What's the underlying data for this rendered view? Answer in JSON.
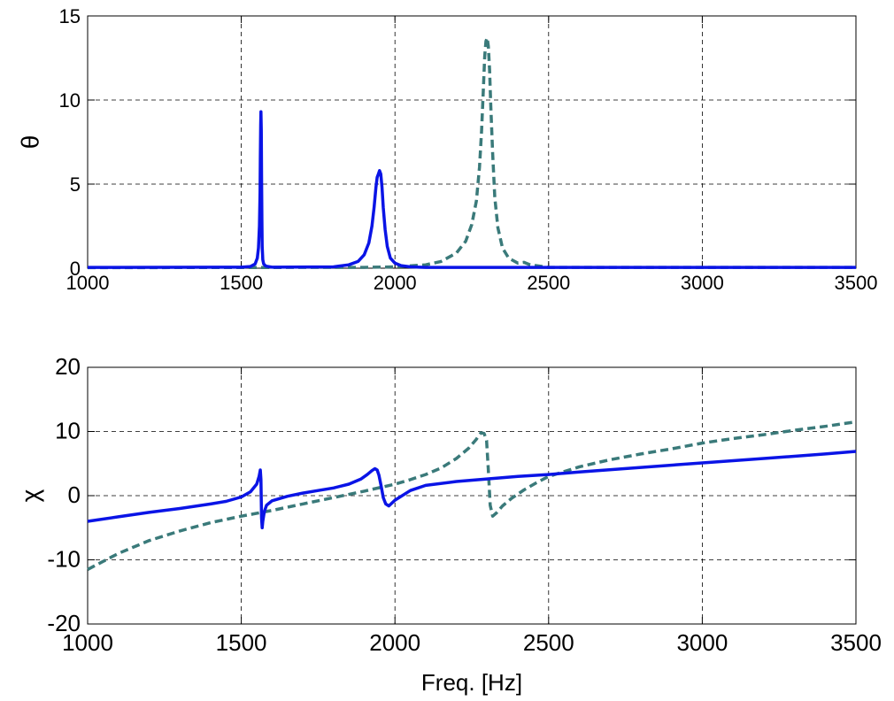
{
  "chart_data": [
    {
      "type": "line",
      "title": "",
      "xlabel": "",
      "ylabel": "θ",
      "xlim": [
        1000,
        3500
      ],
      "ylim": [
        0,
        15
      ],
      "xticks": [
        1000,
        1500,
        2000,
        2500,
        3000,
        3500
      ],
      "yticks": [
        0,
        5,
        10,
        15
      ],
      "grid": true,
      "series": [
        {
          "style": "solid",
          "color": "#0a14e6",
          "x": [
            1000,
            1500,
            1530,
            1545,
            1552,
            1556,
            1559,
            1561,
            1562,
            1563,
            1564,
            1565,
            1566,
            1567,
            1568,
            1570,
            1573,
            1580,
            1600,
            1800,
            1850,
            1880,
            1900,
            1915,
            1925,
            1932,
            1938,
            1942,
            1946,
            1950,
            1954,
            1958,
            1962,
            1968,
            1975,
            1985,
            2000,
            2020,
            2050,
            2100,
            3500
          ],
          "y": [
            0.05,
            0.06,
            0.1,
            0.25,
            0.6,
            1.2,
            2.5,
            4.5,
            6.5,
            8.5,
            9.3,
            8.2,
            5.5,
            2.8,
            1.3,
            0.5,
            0.25,
            0.12,
            0.06,
            0.08,
            0.2,
            0.4,
            0.8,
            1.5,
            2.5,
            3.6,
            4.8,
            5.4,
            5.6,
            5.8,
            5.6,
            4.8,
            3.6,
            2.3,
            1.3,
            0.6,
            0.3,
            0.15,
            0.08,
            0.05,
            0.05
          ]
        },
        {
          "style": "dashed",
          "color": "#3a7a7a",
          "x": [
            1000,
            1900,
            2000,
            2100,
            2150,
            2200,
            2230,
            2250,
            2265,
            2275,
            2282,
            2288,
            2292,
            2296,
            2300,
            2304,
            2308,
            2312,
            2318,
            2325,
            2335,
            2350,
            2370,
            2400,
            2420,
            2440,
            2500,
            3500
          ],
          "y": [
            0.03,
            0.05,
            0.08,
            0.2,
            0.4,
            0.9,
            1.6,
            2.6,
            4.0,
            6.0,
            8.2,
            10.8,
            12.6,
            13.5,
            13.7,
            13.2,
            11.8,
            9.6,
            6.8,
            4.2,
            2.4,
            1.2,
            0.6,
            0.3,
            0.35,
            0.2,
            0.05,
            0.05
          ]
        }
      ]
    },
    {
      "type": "line",
      "title": "",
      "xlabel": "Freq. [Hz]",
      "ylabel": "χ",
      "xlim": [
        1000,
        3500
      ],
      "ylim": [
        -20,
        20
      ],
      "xticks": [
        1000,
        1500,
        2000,
        2500,
        3000,
        3500
      ],
      "yticks": [
        -20,
        -10,
        0,
        10,
        20
      ],
      "grid": true,
      "series": [
        {
          "style": "solid",
          "color": "#0a14e6",
          "x": [
            1000,
            1100,
            1200,
            1300,
            1400,
            1450,
            1500,
            1530,
            1550,
            1558,
            1562,
            1564,
            1566,
            1568,
            1570,
            1575,
            1582,
            1600,
            1650,
            1700,
            1750,
            1800,
            1850,
            1890,
            1910,
            1925,
            1935,
            1942,
            1948,
            1955,
            1962,
            1970,
            1980,
            2000,
            2050,
            2100,
            2200,
            2300,
            2400,
            2500,
            2600,
            2800,
            3000,
            3200,
            3400,
            3500
          ],
          "y": [
            -4.0,
            -3.3,
            -2.6,
            -2.0,
            -1.3,
            -0.9,
            -0.2,
            0.6,
            1.8,
            3.0,
            4.0,
            2.5,
            -3.5,
            -5.0,
            -4.0,
            -2.5,
            -1.5,
            -0.8,
            -0.1,
            0.4,
            0.8,
            1.2,
            1.8,
            2.6,
            3.3,
            3.9,
            4.2,
            4.0,
            3.2,
            1.5,
            -0.3,
            -1.3,
            -1.6,
            -0.7,
            0.8,
            1.6,
            2.2,
            2.6,
            3.0,
            3.3,
            3.7,
            4.4,
            5.1,
            5.8,
            6.5,
            6.9
          ]
        },
        {
          "style": "dashed",
          "color": "#3a7a7a",
          "x": [
            1000,
            1100,
            1200,
            1300,
            1400,
            1500,
            1600,
            1700,
            1800,
            1900,
            2000,
            2050,
            2100,
            2150,
            2200,
            2240,
            2265,
            2280,
            2290,
            2298,
            2304,
            2310,
            2318,
            2330,
            2350,
            2380,
            2420,
            2460,
            2500,
            2600,
            2700,
            2800,
            2900,
            3000,
            3100,
            3200,
            3300,
            3400,
            3500
          ],
          "y": [
            -11.5,
            -9.0,
            -7.0,
            -5.5,
            -4.2,
            -3.2,
            -2.3,
            -1.3,
            -0.3,
            0.7,
            1.8,
            2.5,
            3.3,
            4.3,
            5.8,
            7.4,
            8.8,
            9.8,
            9.7,
            8.6,
            4.0,
            -1.5,
            -3.2,
            -2.7,
            -1.6,
            -0.4,
            0.9,
            2.0,
            3.0,
            4.5,
            5.6,
            6.5,
            7.3,
            8.2,
            8.9,
            9.5,
            10.2,
            10.8,
            11.5
          ]
        }
      ]
    }
  ]
}
